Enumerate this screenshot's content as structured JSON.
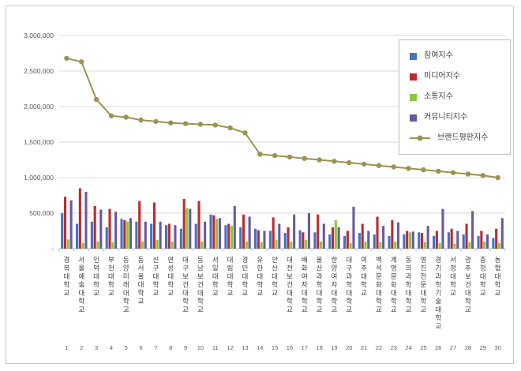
{
  "page": {
    "background": "#ffffff",
    "frame_border": "#c9c9c9",
    "grid_color": "#d9d9d9",
    "axis_color": "#bfbfbf",
    "tick_text_color": "#595959"
  },
  "chart_data": {
    "type": "bar",
    "title": "",
    "xlabel": "",
    "ylabel": "",
    "ylim": [
      0,
      3000000
    ],
    "grid": true,
    "legend_position": "top-right",
    "y_ticks": [
      "3,000,000",
      "2,500,000",
      "2,000,000",
      "1,500,000",
      "1,000,000",
      "500,000",
      "-"
    ],
    "categories": [
      "경복대학교",
      "서울예술대학교",
      "인덕대학교",
      "부천대학교",
      "동양미래대학교",
      "동서울대학교",
      "신구대학교",
      "연성대학교",
      "대구보건대학교",
      "동남보건대학교",
      "서일대학교",
      "대림대학교",
      "경민대학교",
      "유한대학교",
      "안산대학교",
      "대전보건대학교",
      "배화여자대학교",
      "울산과학대학교",
      "한양여자대학교",
      "대구과학대학교",
      "여주대학교",
      "백석문화대학교",
      "계명문화대학교",
      "동의과학대학교",
      "영진전문대학교",
      "경기과학기술대학교",
      "서정대학교",
      "광주보건대학교",
      "충청대학교",
      "농협대학교"
    ],
    "category_numbers": [
      "1",
      "2",
      "3",
      "4",
      "5",
      "6",
      "7",
      "8",
      "9",
      "10",
      "11",
      "12",
      "13",
      "14",
      "15",
      "16",
      "17",
      "18",
      "19",
      "20",
      "21",
      "22",
      "23",
      "24",
      "25",
      "26",
      "27",
      "28",
      "29",
      "30"
    ],
    "series": [
      {
        "name": "참여지수",
        "type": "bar",
        "color": "#4472c4",
        "values": [
          500000,
          350000,
          380000,
          300000,
          420000,
          380000,
          350000,
          330000,
          280000,
          350000,
          480000,
          330000,
          300000,
          280000,
          250000,
          220000,
          260000,
          230000,
          200000,
          180000,
          220000,
          200000,
          180000,
          200000,
          230000,
          180000,
          230000,
          200000,
          180000,
          150000
        ]
      },
      {
        "name": "미디어지수",
        "type": "bar",
        "color": "#be2b2b",
        "values": [
          730000,
          850000,
          600000,
          560000,
          400000,
          670000,
          650000,
          350000,
          700000,
          670000,
          470000,
          350000,
          480000,
          260000,
          440000,
          300000,
          230000,
          480000,
          300000,
          250000,
          350000,
          450000,
          400000,
          250000,
          220000,
          250000,
          280000,
          350000,
          250000,
          280000
        ]
      },
      {
        "name": "소통지수",
        "type": "bar",
        "color": "#8cc63e",
        "values": [
          130000,
          80000,
          100000,
          90000,
          380000,
          100000,
          120000,
          100000,
          570000,
          100000,
          420000,
          320000,
          100000,
          90000,
          120000,
          100000,
          120000,
          100000,
          400000,
          80000,
          100000,
          90000,
          100000,
          230000,
          90000,
          80000,
          70000,
          90000,
          100000,
          80000
        ]
      },
      {
        "name": "커뮤니티지수",
        "type": "bar",
        "color": "#6a58a5",
        "values": [
          680000,
          800000,
          550000,
          520000,
          430000,
          380000,
          380000,
          330000,
          560000,
          380000,
          430000,
          600000,
          450000,
          250000,
          350000,
          480000,
          500000,
          350000,
          300000,
          590000,
          250000,
          320000,
          370000,
          240000,
          320000,
          560000,
          250000,
          530000,
          200000,
          430000
        ]
      },
      {
        "name": "브랜드평판지수",
        "type": "line",
        "color": "#9b9351",
        "values": [
          2680000,
          2630000,
          2100000,
          1870000,
          1850000,
          1810000,
          1790000,
          1770000,
          1760000,
          1750000,
          1740000,
          1700000,
          1630000,
          1330000,
          1310000,
          1290000,
          1270000,
          1250000,
          1230000,
          1210000,
          1190000,
          1170000,
          1150000,
          1130000,
          1110000,
          1090000,
          1070000,
          1050000,
          1030000,
          1000000
        ]
      }
    ]
  }
}
